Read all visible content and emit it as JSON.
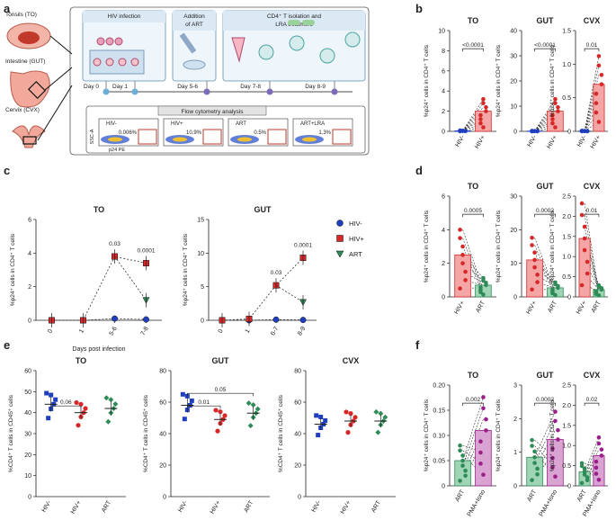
{
  "panels": {
    "a": "a",
    "b": "b",
    "c": "c",
    "d": "d",
    "e": "e",
    "f": "f"
  },
  "schematic": {
    "tissues": [
      "Tonsils (TO)",
      "Intestine (GUT)",
      "Cervix (CVX)"
    ],
    "box_infection": "HIV infection",
    "box_art": [
      "Addition",
      "of ART"
    ],
    "box_cd4": [
      "CD4⁺ T isolation and",
      "LRA treatment"
    ],
    "days": [
      "Day 0",
      "Day 1",
      "Day 5-6",
      "Day 7-8",
      "Day 8-9"
    ],
    "flow_title": "Flow cytometry analysis",
    "flow_panels": [
      {
        "label": "HIV-",
        "pct": "0.006%"
      },
      {
        "label": "HIV+",
        "pct": "10.9%"
      },
      {
        "label": "ART",
        "pct": "0.5%"
      },
      {
        "label": "ART+LRA",
        "pct": "1.3%"
      }
    ],
    "flow_yaxis": "SSC-A",
    "flow_xaxis": "p24 PE"
  },
  "colors": {
    "neg": "#1f3fbf",
    "pos": "#d62828",
    "art": "#2e8b57",
    "pma": "#9b1f8a"
  },
  "chart_data": [
    {
      "id": "b-TO",
      "type": "bar",
      "title": "TO",
      "ylabel": "%p24⁺ cells in CD4⁺ T cells",
      "ylim": [
        0,
        10
      ],
      "yticks": [
        "0",
        "2",
        "4",
        "6",
        "8",
        "10"
      ],
      "categories": [
        "HIV-",
        "HIV+"
      ],
      "values": [
        0.05,
        2.0
      ],
      "pvalue": "<0.0001"
    },
    {
      "id": "b-GUT",
      "type": "bar",
      "title": "GUT",
      "ylabel": "%p24⁺ cells in CD4⁺ T cells",
      "ylim": [
        0,
        40
      ],
      "yticks": [
        "0",
        "10",
        "20",
        "30",
        "40"
      ],
      "categories": [
        "HIV-",
        "HIV+"
      ],
      "values": [
        0.1,
        8.0
      ],
      "pvalue": "<0.0001"
    },
    {
      "id": "b-CVX",
      "type": "bar",
      "title": "CVX",
      "ylabel": "%p24⁺ cells in CD4⁺ T cells",
      "ylim": [
        0,
        1.5
      ],
      "yticks": [
        "0",
        "0.5",
        "1.0",
        "1.5"
      ],
      "categories": [
        "HIV-",
        "HIV+"
      ],
      "values": [
        0.005,
        0.7
      ],
      "pvalue": "0.01"
    },
    {
      "id": "c-TO",
      "type": "line",
      "title": "TO",
      "ylabel": "%p24⁺ cells in CD4⁺ T cells",
      "xlabel": "Days post infection",
      "ylim": [
        0,
        6
      ],
      "yticks": [
        "0",
        "2",
        "4",
        "6"
      ],
      "x": [
        "0",
        "1",
        "5-6",
        "7-8"
      ],
      "series": [
        {
          "name": "HIV-",
          "values": [
            0,
            0,
            0.1,
            0.05
          ]
        },
        {
          "name": "HIV+",
          "values": [
            0,
            0,
            3.8,
            3.4
          ]
        },
        {
          "name": "ART",
          "values": [
            null,
            null,
            null,
            1.2
          ]
        }
      ],
      "annotations": [
        {
          "x": "5-6",
          "text": "0.03"
        },
        {
          "x": "7-8",
          "text": "0.0001"
        }
      ]
    },
    {
      "id": "c-GUT",
      "type": "line",
      "title": "GUT",
      "ylabel": "%p24⁺ cells in CD4⁺ T cells",
      "ylim": [
        0,
        15
      ],
      "yticks": [
        "0",
        "5",
        "10",
        "15"
      ],
      "x": [
        "0",
        "1",
        "6-7",
        "8-9"
      ],
      "series": [
        {
          "name": "HIV-",
          "values": [
            0,
            0,
            0.1,
            0.05
          ]
        },
        {
          "name": "HIV+",
          "values": [
            0,
            0.2,
            5.2,
            9.3
          ]
        },
        {
          "name": "ART",
          "values": [
            null,
            null,
            null,
            2.7
          ]
        }
      ],
      "annotations": [
        {
          "x": "6-7",
          "text": "0.03"
        },
        {
          "x": "8-9",
          "text": "0.0001"
        }
      ],
      "legend": [
        "HIV-",
        "HIV+",
        "ART"
      ]
    },
    {
      "id": "d-TO",
      "type": "bar",
      "title": "TO",
      "ylabel": "%p24⁺ cells in CD4⁺ T cells",
      "ylim": [
        0,
        6
      ],
      "yticks": [
        "0",
        "2",
        "4",
        "6"
      ],
      "categories": [
        "HIV+",
        "ART"
      ],
      "values": [
        2.5,
        0.7
      ],
      "pvalue": "0.0005"
    },
    {
      "id": "d-GUT",
      "type": "bar",
      "title": "GUT",
      "ylabel": "%p24⁺ cells in CD4⁺ T cells",
      "ylim": [
        0,
        30
      ],
      "yticks": [
        "0",
        "10",
        "20",
        "30"
      ],
      "categories": [
        "HIV+",
        "ART"
      ],
      "values": [
        11.0,
        2.7
      ],
      "pvalue": "0.0002"
    },
    {
      "id": "d-CVX",
      "type": "bar",
      "title": "CVX",
      "ylabel": "%p24⁺ cells in CD4⁺ T cells",
      "ylim": [
        0,
        2.5
      ],
      "yticks": [
        "0",
        "0.5",
        "1.0",
        "1.5",
        "2.0",
        "2.5"
      ],
      "categories": [
        "HIV+",
        "ART"
      ],
      "values": [
        1.45,
        0.18
      ],
      "pvalue": "0.01"
    },
    {
      "id": "e-TO",
      "type": "scatter",
      "title": "TO",
      "ylabel": "%CD4⁺ T cells in CD45⁺ cells",
      "ylim": [
        0,
        60
      ],
      "yticks": [
        "0",
        "10",
        "20",
        "30",
        "40",
        "50",
        "60"
      ],
      "categories": [
        "HIV-",
        "HIV+",
        "ART"
      ],
      "values": [
        44,
        40,
        42
      ],
      "pvalue": [
        {
          "pair": [
            0,
            1
          ],
          "text": "0.06"
        }
      ]
    },
    {
      "id": "e-GUT",
      "type": "scatter",
      "title": "GUT",
      "ylabel": "%CD4⁺ T cells in CD45⁺ cells",
      "ylim": [
        0,
        80
      ],
      "yticks": [
        "0",
        "20",
        "40",
        "60",
        "80"
      ],
      "categories": [
        "HIV-",
        "HIV+",
        "ART"
      ],
      "values": [
        58,
        49,
        53
      ],
      "pvalue": [
        {
          "pair": [
            0,
            1
          ],
          "text": "0.01"
        },
        {
          "pair": [
            0,
            2
          ],
          "text": "0.05"
        }
      ]
    },
    {
      "id": "e-CVX",
      "type": "scatter",
      "title": "CVX",
      "ylabel": "%CD4⁺ T cells in CD45⁺ cells",
      "ylim": [
        0,
        80
      ],
      "yticks": [
        "0",
        "20",
        "40",
        "60",
        "80"
      ],
      "categories": [
        "HIV-",
        "HIV+",
        "ART"
      ],
      "values": [
        46,
        48,
        48
      ],
      "pvalue": []
    },
    {
      "id": "f-TO",
      "type": "bar",
      "title": "TO",
      "ylabel": "%p24⁺ cells in CD4⁺ T cells",
      "ylim": [
        0,
        0.2
      ],
      "yticks": [
        "0",
        "0.05",
        "0.10",
        "0.15",
        "0.20"
      ],
      "categories": [
        "ART",
        "PMA+Iono"
      ],
      "values": [
        0.05,
        0.11
      ],
      "pvalue": "0.002"
    },
    {
      "id": "f-GUT",
      "type": "bar",
      "title": "GUT",
      "ylabel": "%p24⁺ cells in CD4⁺ T cells",
      "ylim": [
        0,
        3
      ],
      "yticks": [
        "0",
        "1",
        "2",
        "3"
      ],
      "categories": [
        "ART",
        "PMA+Iono"
      ],
      "values": [
        0.85,
        1.38
      ],
      "pvalue": "0.0002"
    },
    {
      "id": "f-CVX",
      "type": "bar",
      "title": "CVX",
      "ylabel": "%p24⁺ cells in CD4⁺ T cells",
      "ylim": [
        0,
        2.5
      ],
      "yticks": [
        "0",
        "0.5",
        "1.0",
        "1.5",
        "2.0",
        "2.5"
      ],
      "categories": [
        "ART",
        "PMA+Iono"
      ],
      "values": [
        0.35,
        0.75
      ],
      "pvalue": "0.02"
    }
  ]
}
